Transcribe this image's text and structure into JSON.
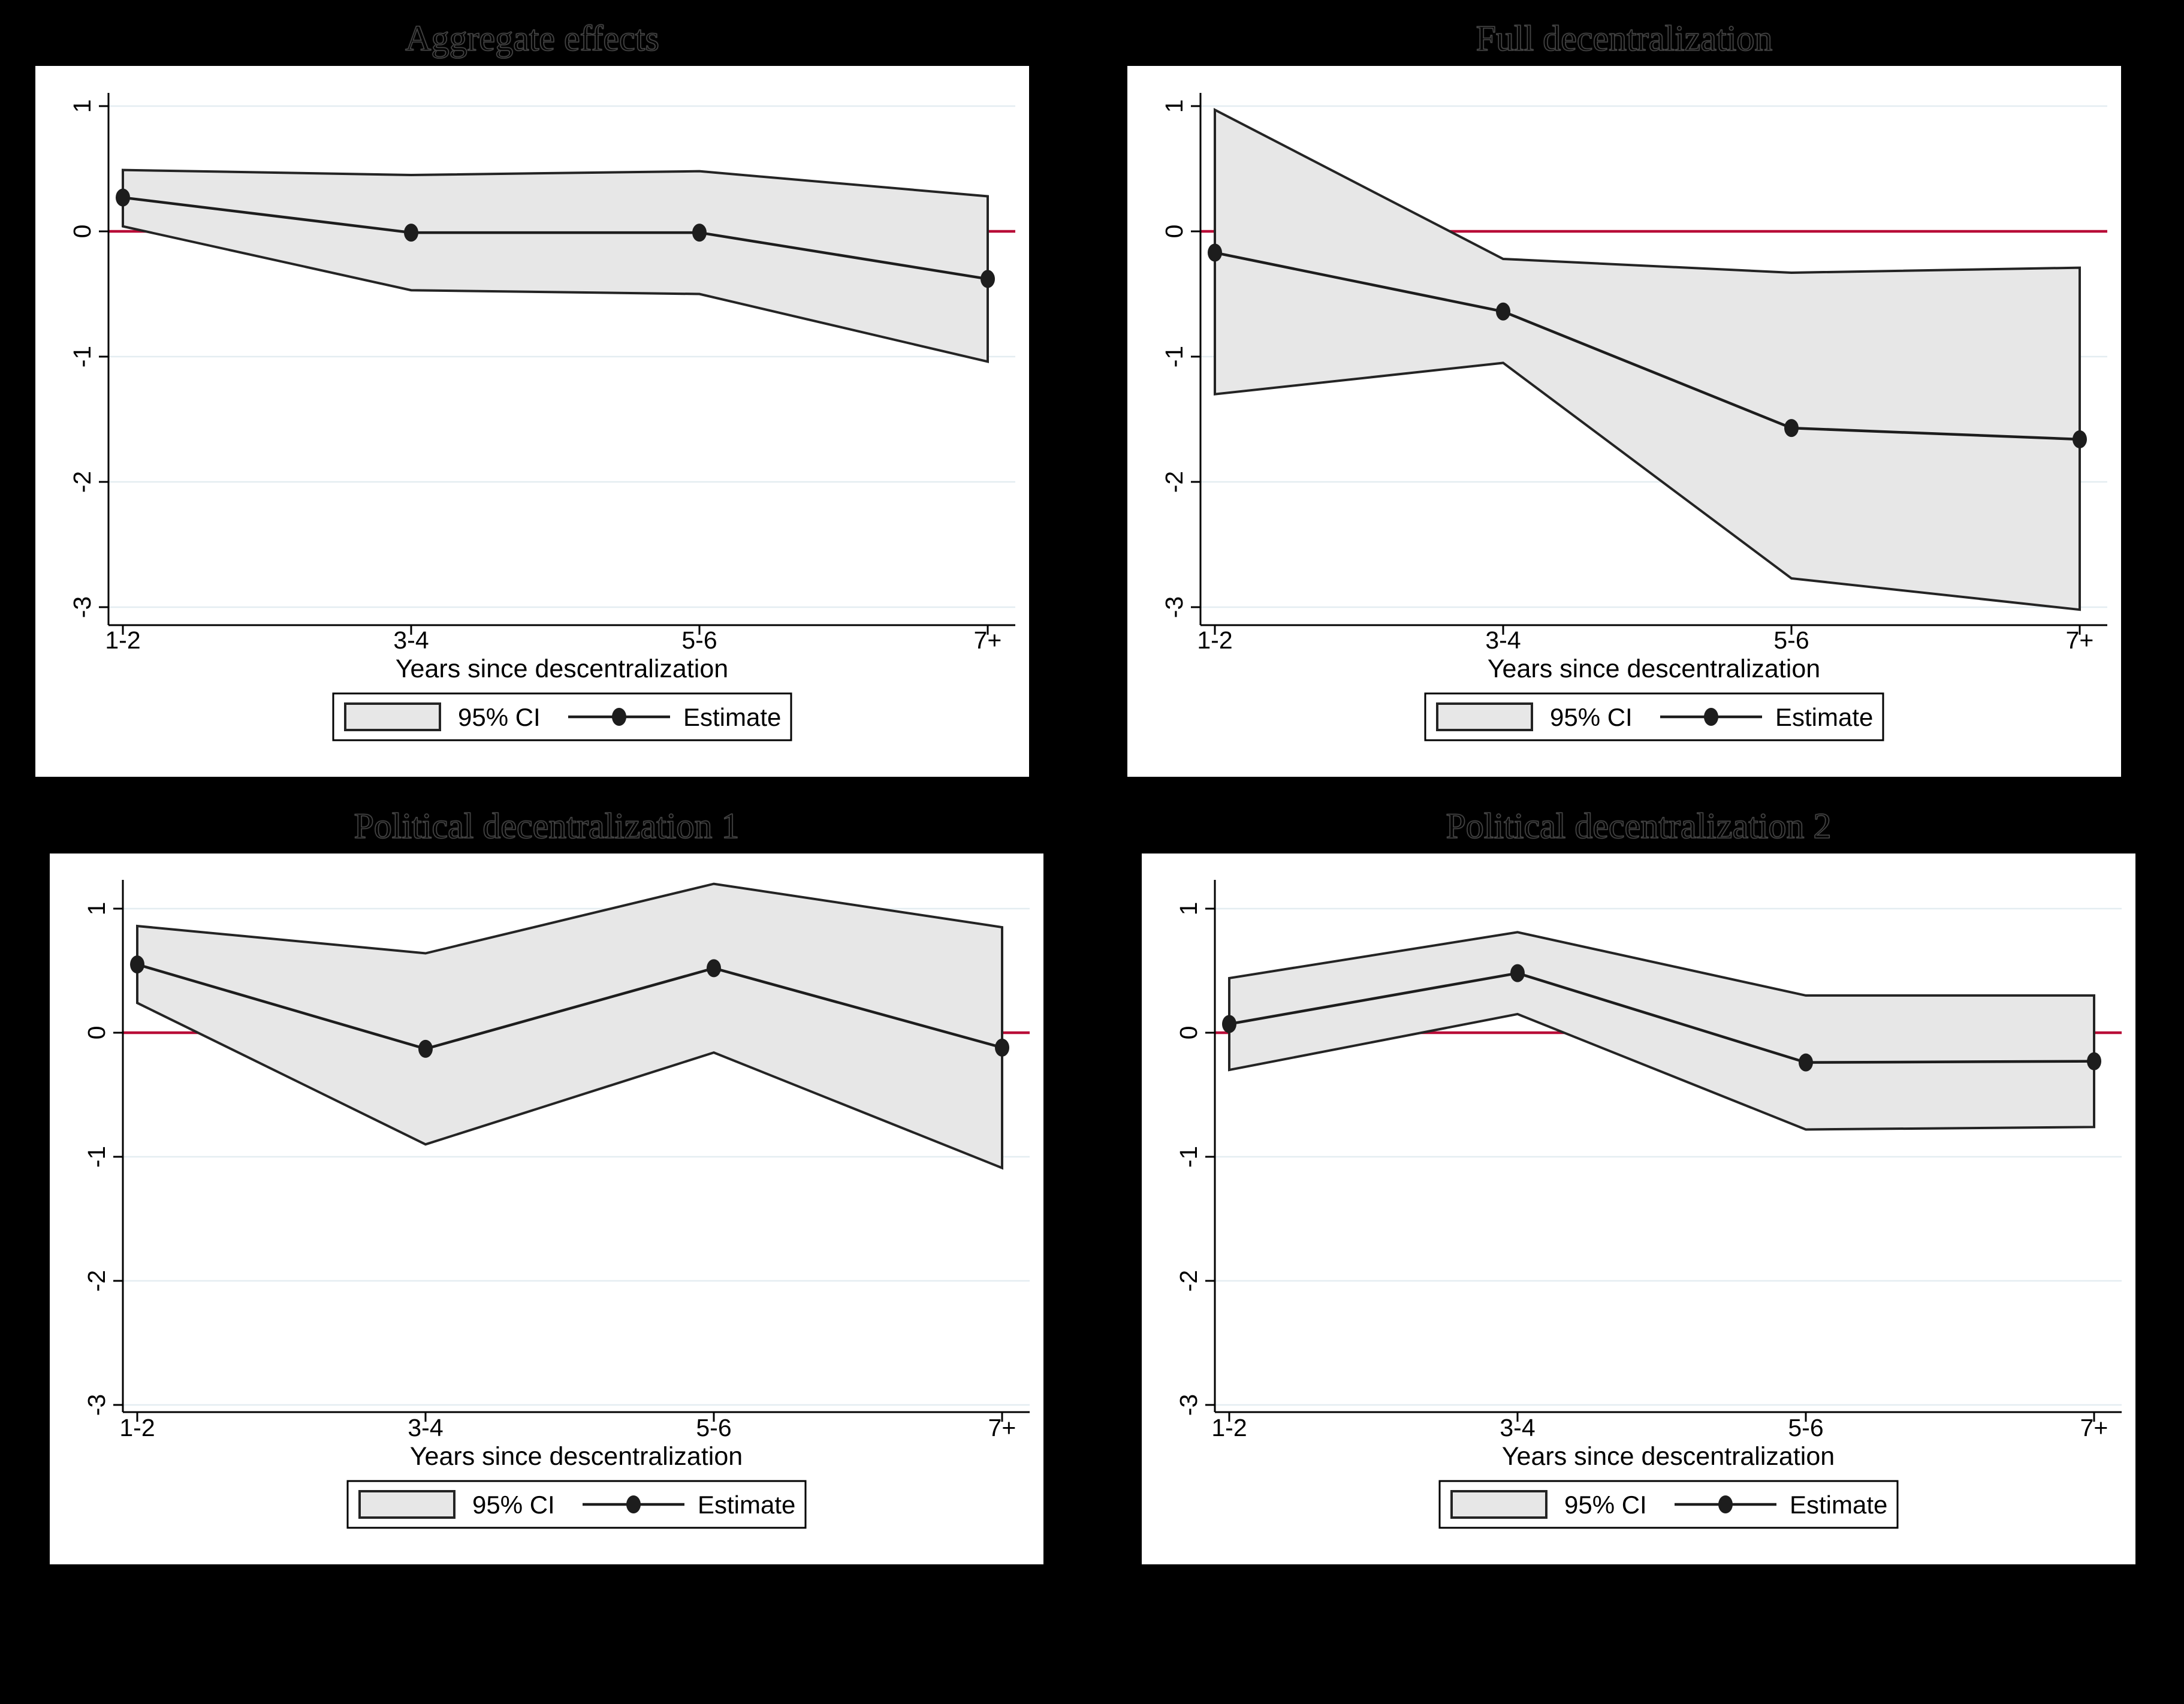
{
  "figure": {
    "background_color": "#000000",
    "panel_background": "#ffffff",
    "grid_color": "#e4edf1",
    "ref_line_color": "#b80c37",
    "band_fill_color": "#e7e7e7",
    "band_stroke_color": "#242424",
    "estimate_color": "#1d1d1d",
    "axis_color": "#000000",
    "text_color": "#000000"
  },
  "legend": {
    "ci_label": "95% CI",
    "estimate_label": "Estimate"
  },
  "chart_data": [
    {
      "type": "area",
      "title": "Aggregate effects",
      "xlabel": "Years since descentralization",
      "categories": [
        "1-2",
        "3-4",
        "5-6",
        "7+"
      ],
      "yticks": [
        "1",
        "0",
        "-1",
        "-2",
        "-3"
      ],
      "ytick_values": [
        1,
        0,
        -1,
        -2,
        -3
      ],
      "ylim": [
        -3.14,
        1.11
      ],
      "ref_line": 0,
      "legend": [
        "95% CI",
        "Estimate"
      ],
      "series": [
        {
          "name": "Estimate",
          "values": [
            0.27,
            -0.01,
            -0.01,
            -0.38
          ]
        },
        {
          "name": "95% CI upper",
          "values": [
            0.49,
            0.45,
            0.48,
            0.28
          ]
        },
        {
          "name": "95% CI lower",
          "values": [
            0.04,
            -0.47,
            -0.5,
            -1.04
          ]
        }
      ]
    },
    {
      "type": "area",
      "title": "Full decentralization",
      "xlabel": "Years since descentralization",
      "categories": [
        "1-2",
        "3-4",
        "5-6",
        "7+"
      ],
      "yticks": [
        "1",
        "0",
        "-1",
        "-2",
        "-3"
      ],
      "ytick_values": [
        1,
        0,
        -1,
        -2,
        -3
      ],
      "ylim": [
        -3.14,
        1.11
      ],
      "ref_line": 0,
      "legend": [
        "95% CI",
        "Estimate"
      ],
      "series": [
        {
          "name": "Estimate",
          "values": [
            -0.17,
            -0.64,
            -1.57,
            -1.66
          ]
        },
        {
          "name": "95% CI upper",
          "values": [
            0.97,
            -0.22,
            -0.33,
            -0.29
          ]
        },
        {
          "name": "95% CI lower",
          "values": [
            -1.3,
            -1.05,
            -2.77,
            -3.02
          ]
        }
      ]
    },
    {
      "type": "area",
      "title": "Political decentralization 1",
      "xlabel": "Years since descentralization",
      "categories": [
        "1-2",
        "3-4",
        "5-6",
        "7+"
      ],
      "yticks": [
        "1",
        "0",
        "-1",
        "-2",
        "-3"
      ],
      "ytick_values": [
        1,
        0,
        -1,
        -2,
        -3
      ],
      "ylim": [
        -3.22,
        1.23
      ],
      "ref_line": 0,
      "legend": [
        "95% CI",
        "Estimate"
      ],
      "series": [
        {
          "name": "Estimate",
          "values": [
            0.55,
            -0.13,
            0.52,
            -0.12
          ]
        },
        {
          "name": "95% CI upper",
          "values": [
            0.86,
            0.64,
            1.2,
            0.85
          ]
        },
        {
          "name": "95% CI lower",
          "values": [
            0.24,
            -0.9,
            -0.16,
            -1.09
          ]
        }
      ]
    },
    {
      "type": "area",
      "title": "Political decentralization 2",
      "xlabel": "Years since descentralization",
      "categories": [
        "1-2",
        "3-4",
        "5-6",
        "7+"
      ],
      "yticks": [
        "1",
        "0",
        "-1",
        "-2",
        "-3"
      ],
      "ytick_values": [
        1,
        0,
        -1,
        -2,
        -3
      ],
      "ylim": [
        -3.22,
        1.23
      ],
      "ref_line": 0,
      "legend": [
        "95% CI",
        "Estimate"
      ],
      "series": [
        {
          "name": "Estimate",
          "values": [
            0.07,
            0.48,
            -0.24,
            -0.23
          ]
        },
        {
          "name": "95% CI upper",
          "values": [
            0.44,
            0.81,
            0.3,
            0.3
          ]
        },
        {
          "name": "95% CI lower",
          "values": [
            -0.3,
            0.15,
            -0.78,
            -0.76
          ]
        }
      ]
    }
  ]
}
